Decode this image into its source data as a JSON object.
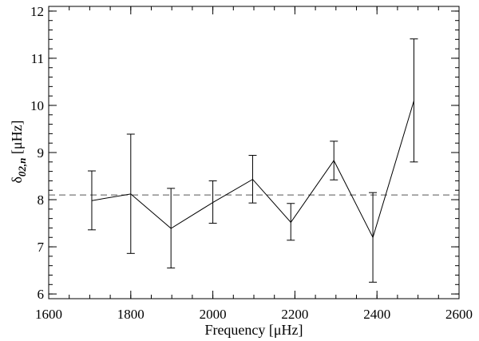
{
  "chart_data": {
    "type": "line",
    "xlabel": "Frequency [μHz]",
    "ylabel": {
      "symbol": "δ",
      "subscript": "02,n",
      "unit": " [μHz]"
    },
    "xlim": [
      1600,
      2600
    ],
    "ylim": [
      5.9,
      12.1
    ],
    "x_ticks": [
      1600,
      1800,
      2000,
      2200,
      2400,
      2600
    ],
    "y_ticks": [
      6,
      7,
      8,
      9,
      10,
      11,
      12
    ],
    "x_minor_step": 50,
    "y_minor_step": 0.2,
    "grid": false,
    "legend": "none",
    "series": [
      {
        "x": [
          1705,
          1800,
          1898,
          2000,
          2097,
          2190,
          2295,
          2390,
          2490
        ],
        "y": [
          7.98,
          8.12,
          7.39,
          7.94,
          8.43,
          7.52,
          8.83,
          7.2,
          10.1
        ],
        "err_low": [
          0.62,
          1.26,
          0.84,
          0.44,
          0.5,
          0.38,
          0.41,
          0.95,
          1.3
        ],
        "err_high": [
          0.63,
          1.27,
          0.85,
          0.46,
          0.51,
          0.4,
          0.41,
          0.95,
          1.31
        ],
        "color": "#000000"
      }
    ],
    "reference_lines": [
      {
        "y": 8.1,
        "style": "dashed",
        "color": "#555555"
      }
    ]
  }
}
